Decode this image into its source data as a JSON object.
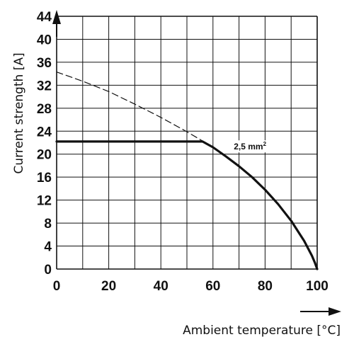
{
  "chart_data": {
    "type": "line",
    "xlabel": "Ambient temperature [°C]",
    "ylabel": "Current strength [A]",
    "xlim": [
      0,
      100
    ],
    "ylim": [
      0,
      44
    ],
    "x_ticks": [
      "0",
      "20",
      "40",
      "60",
      "80",
      "100"
    ],
    "y_ticks": [
      "0",
      "4",
      "8",
      "12",
      "16",
      "20",
      "24",
      "28",
      "32",
      "36",
      "40",
      "44"
    ],
    "grid": true,
    "series": [
      {
        "name": "2,5 mm²",
        "style": "solid",
        "points": [
          [
            0,
            22.2
          ],
          [
            56,
            22.2
          ],
          [
            60,
            21.2
          ],
          [
            65,
            19.6
          ],
          [
            70,
            17.9
          ],
          [
            75,
            16.0
          ],
          [
            80,
            13.8
          ],
          [
            85,
            11.3
          ],
          [
            90,
            8.4
          ],
          [
            95,
            4.9
          ],
          [
            98,
            2.3
          ],
          [
            99.2,
            1.0
          ],
          [
            100,
            0
          ]
        ]
      },
      {
        "name": "",
        "style": "dashed",
        "points": [
          [
            0,
            34.3
          ],
          [
            10,
            32.7
          ],
          [
            20,
            30.9
          ],
          [
            30,
            28.7
          ],
          [
            40,
            26.4
          ],
          [
            50,
            23.9
          ],
          [
            56,
            22.3
          ]
        ]
      }
    ],
    "annotations": [
      {
        "text": "2,5 mm",
        "sup": "2",
        "x": 68,
        "y": 20.8
      }
    ]
  }
}
